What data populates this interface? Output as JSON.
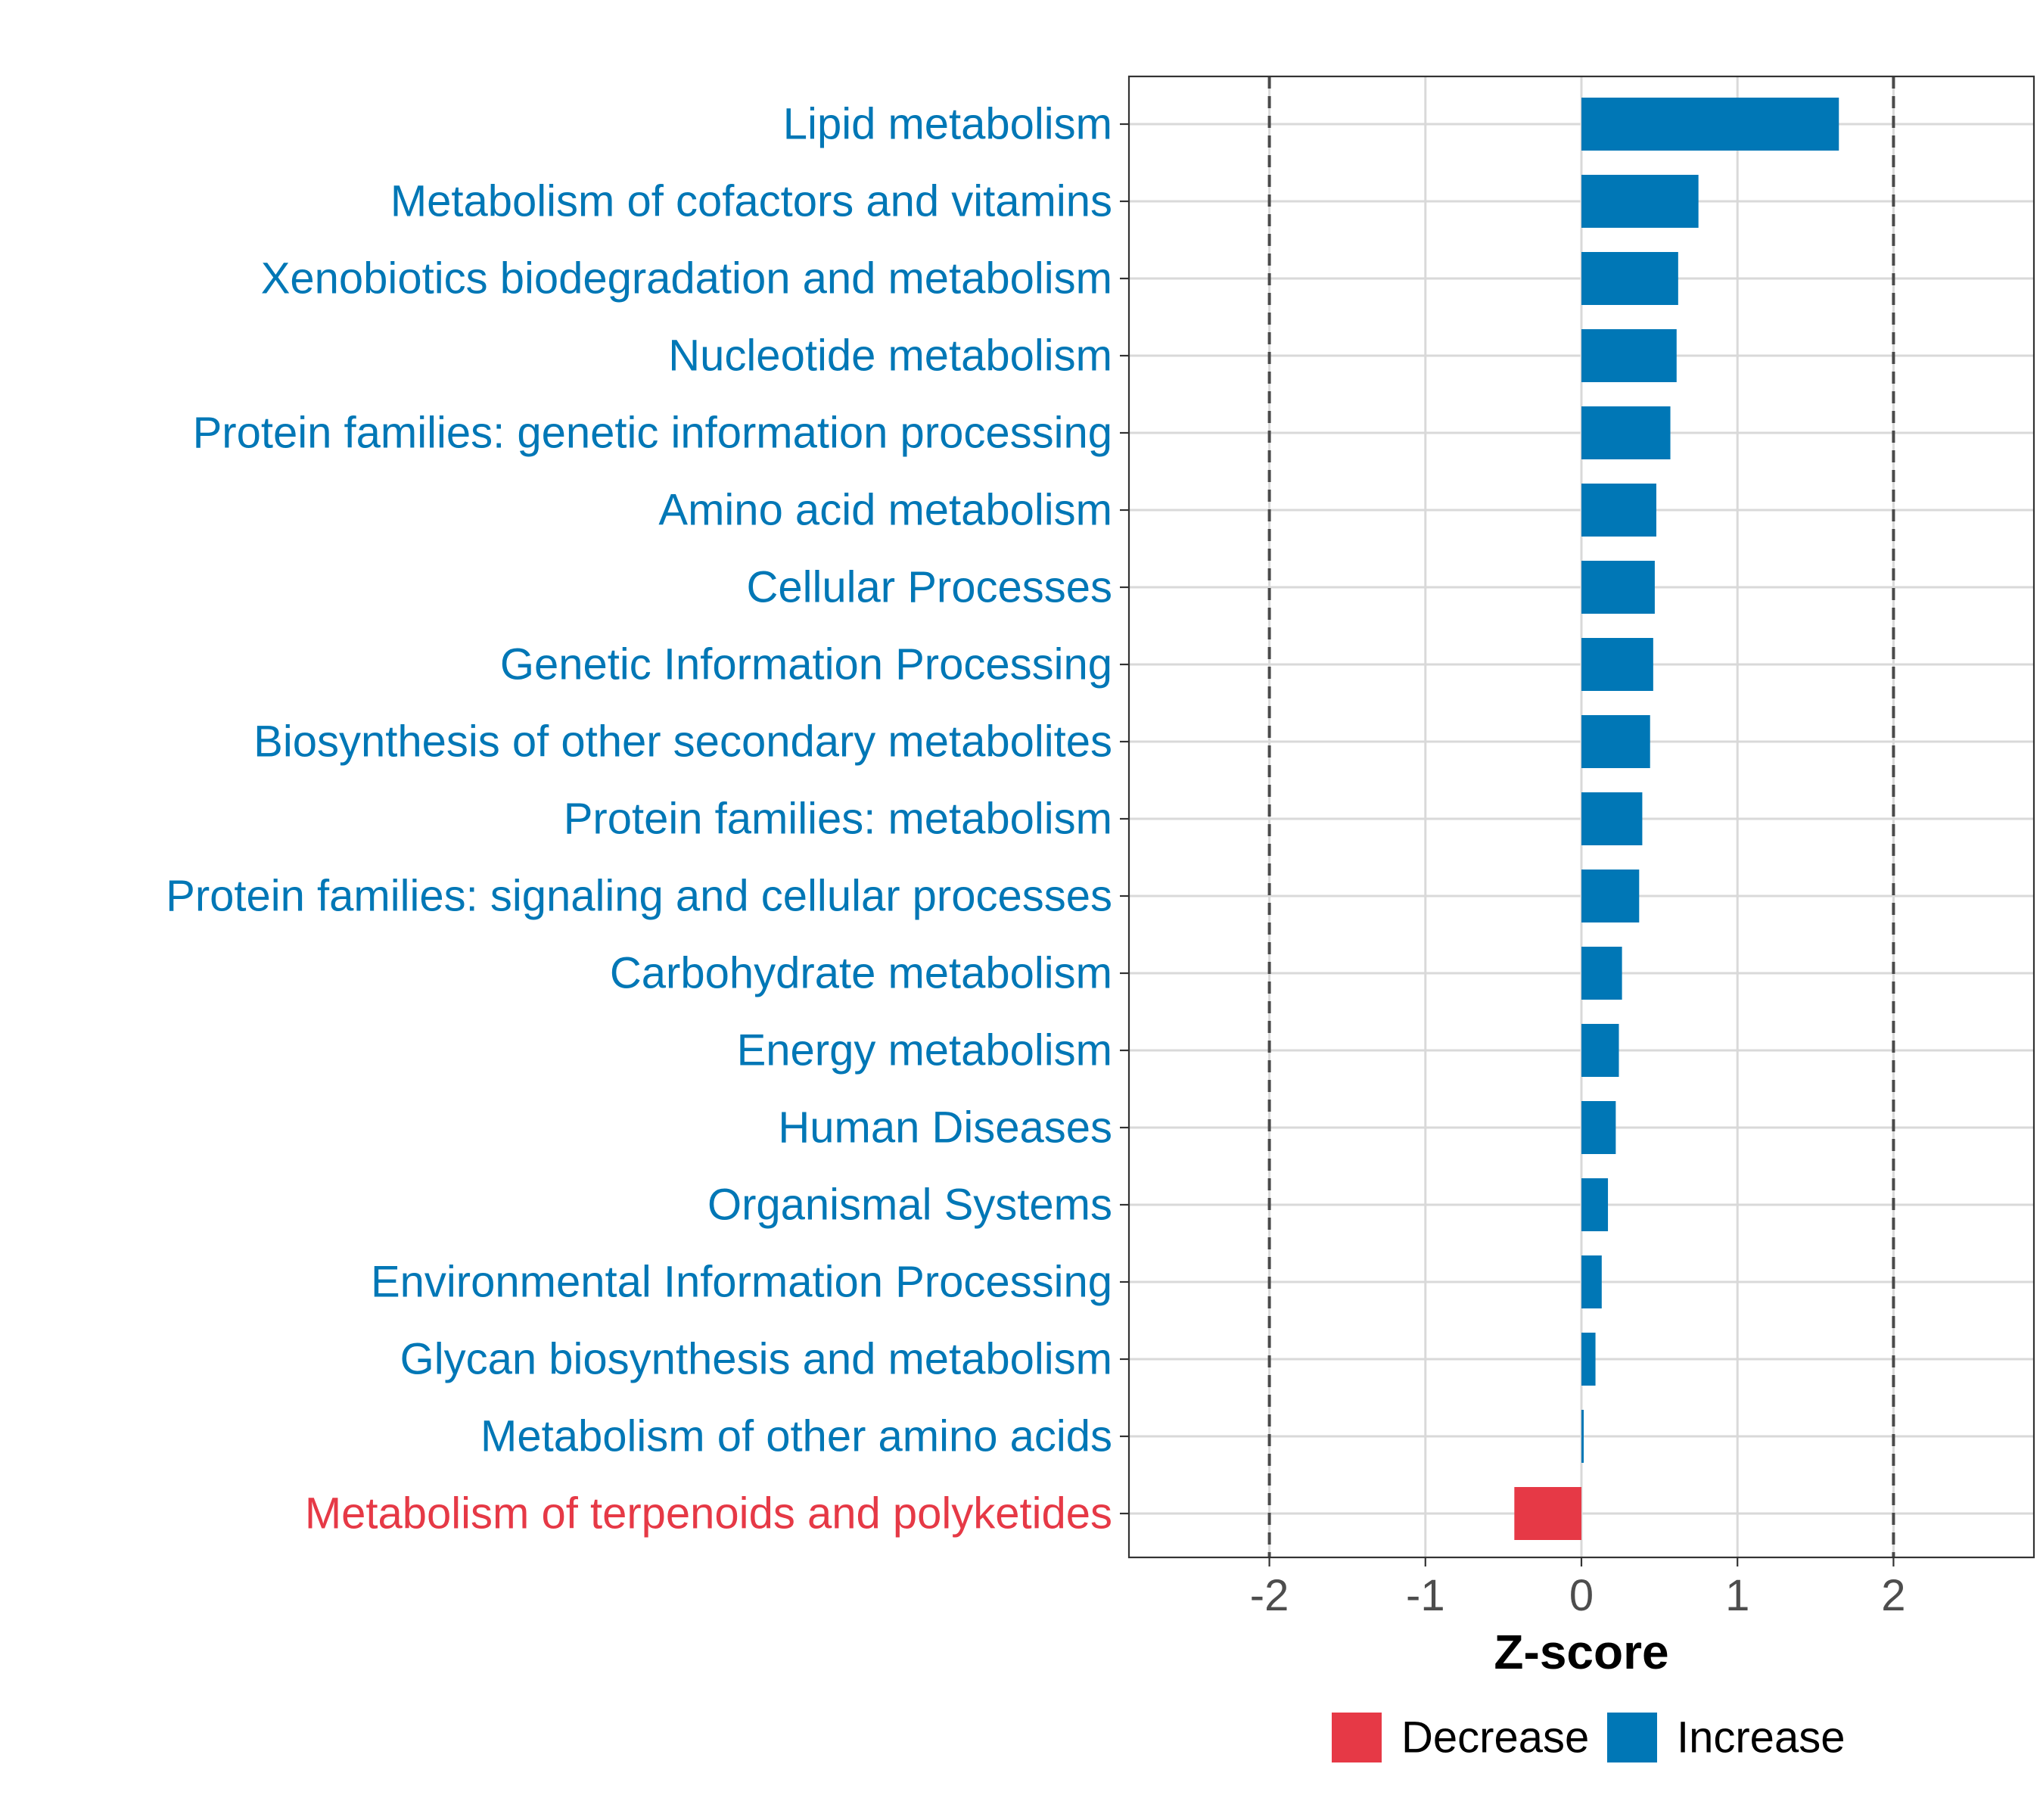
{
  "chart_data": {
    "type": "bar",
    "orientation": "horizontal",
    "categories": [
      "Lipid metabolism",
      "Metabolism of cofactors and vitamins",
      "Xenobiotics biodegradation and metabolism",
      "Nucleotide metabolism",
      "Protein families: genetic information processing",
      "Amino acid metabolism",
      "Cellular Processes",
      "Genetic Information Processing",
      "Biosynthesis of other secondary metabolites",
      "Protein families: metabolism",
      "Protein families: signaling and cellular processes",
      "Carbohydrate metabolism",
      "Energy metabolism",
      "Human Diseases",
      "Organismal Systems",
      "Environmental Information Processing",
      "Glycan biosynthesis and metabolism",
      "Metabolism of other amino acids",
      "Metabolism of terpenoids and polyketides"
    ],
    "values": [
      1.65,
      0.75,
      0.62,
      0.61,
      0.57,
      0.48,
      0.47,
      0.46,
      0.44,
      0.39,
      0.37,
      0.26,
      0.24,
      0.22,
      0.17,
      0.13,
      0.09,
      0.01,
      -0.43
    ],
    "groups": [
      "Increase",
      "Increase",
      "Increase",
      "Increase",
      "Increase",
      "Increase",
      "Increase",
      "Increase",
      "Increase",
      "Increase",
      "Increase",
      "Increase",
      "Increase",
      "Increase",
      "Increase",
      "Increase",
      "Increase",
      "Increase",
      "Decrease"
    ],
    "xlabel": "Z-score",
    "ylabel": "",
    "xlim": [
      -2.9,
      2.9
    ],
    "xticks": [
      -2,
      -1,
      0,
      1,
      2
    ],
    "reference_lines": [
      -2,
      2
    ],
    "grid": true,
    "legend": {
      "position": "bottom",
      "items": [
        {
          "label": "Decrease",
          "color": "#E63946"
        },
        {
          "label": "Increase",
          "color": "#0077B6"
        }
      ]
    },
    "colors": {
      "Increase": "#0077B6",
      "Decrease": "#E63946"
    }
  }
}
